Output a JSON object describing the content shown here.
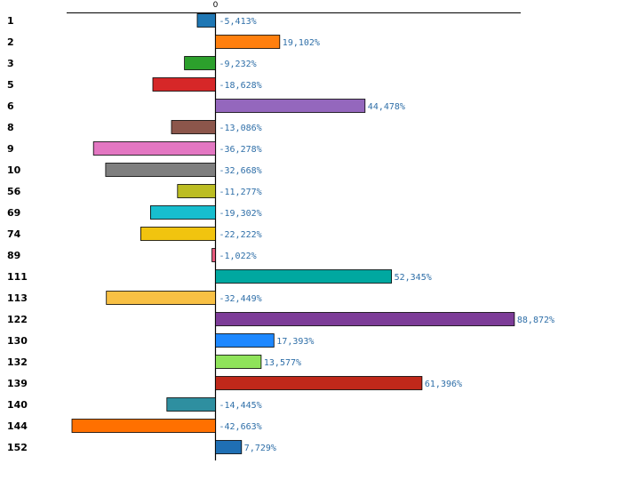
{
  "chart_data": {
    "type": "bar",
    "orientation": "horizontal",
    "title": "",
    "xlabel": "",
    "ylabel": "",
    "zero_tick_label": "0",
    "xlim": [
      -50,
      102
    ],
    "grid": false,
    "categories": [
      "1",
      "2",
      "3",
      "5",
      "6",
      "8",
      "9",
      "10",
      "56",
      "69",
      "74",
      "89",
      "111",
      "113",
      "122",
      "130",
      "132",
      "139",
      "140",
      "144",
      "152"
    ],
    "values": [
      -5.413,
      19.102,
      -9.232,
      -18.628,
      44.478,
      -13.086,
      -36.278,
      -32.668,
      -11.277,
      -19.302,
      -22.222,
      -1.022,
      52.345,
      -32.449,
      88.872,
      17.393,
      13.577,
      61.396,
      -14.445,
      -42.663,
      7.729
    ],
    "value_labels": [
      "-5,413%",
      "19,102%",
      "-9,232%",
      "-18,628%",
      "44,478%",
      "-13,086%",
      "-36,278%",
      "-32,668%",
      "-11,277%",
      "-19,302%",
      "-22,222%",
      "-1,022%",
      "52,345%",
      "-32,449%",
      "88,872%",
      "17,393%",
      "13,577%",
      "61,396%",
      "-14,445%",
      "-42,663%",
      "7,729%"
    ],
    "colors": [
      "#1f77b4",
      "#ff7f0e",
      "#2ca02c",
      "#d62728",
      "#9467bd",
      "#8c564b",
      "#e377c2",
      "#7f7f7f",
      "#bcbd22",
      "#17becf",
      "#f1c40f",
      "#e75a7c",
      "#00a8a0",
      "#f8c044",
      "#7d3c98",
      "#1e88ff",
      "#8fe35a",
      "#c0281a",
      "#2e8fa0",
      "#ff7000",
      "#1f6fb4"
    ]
  }
}
